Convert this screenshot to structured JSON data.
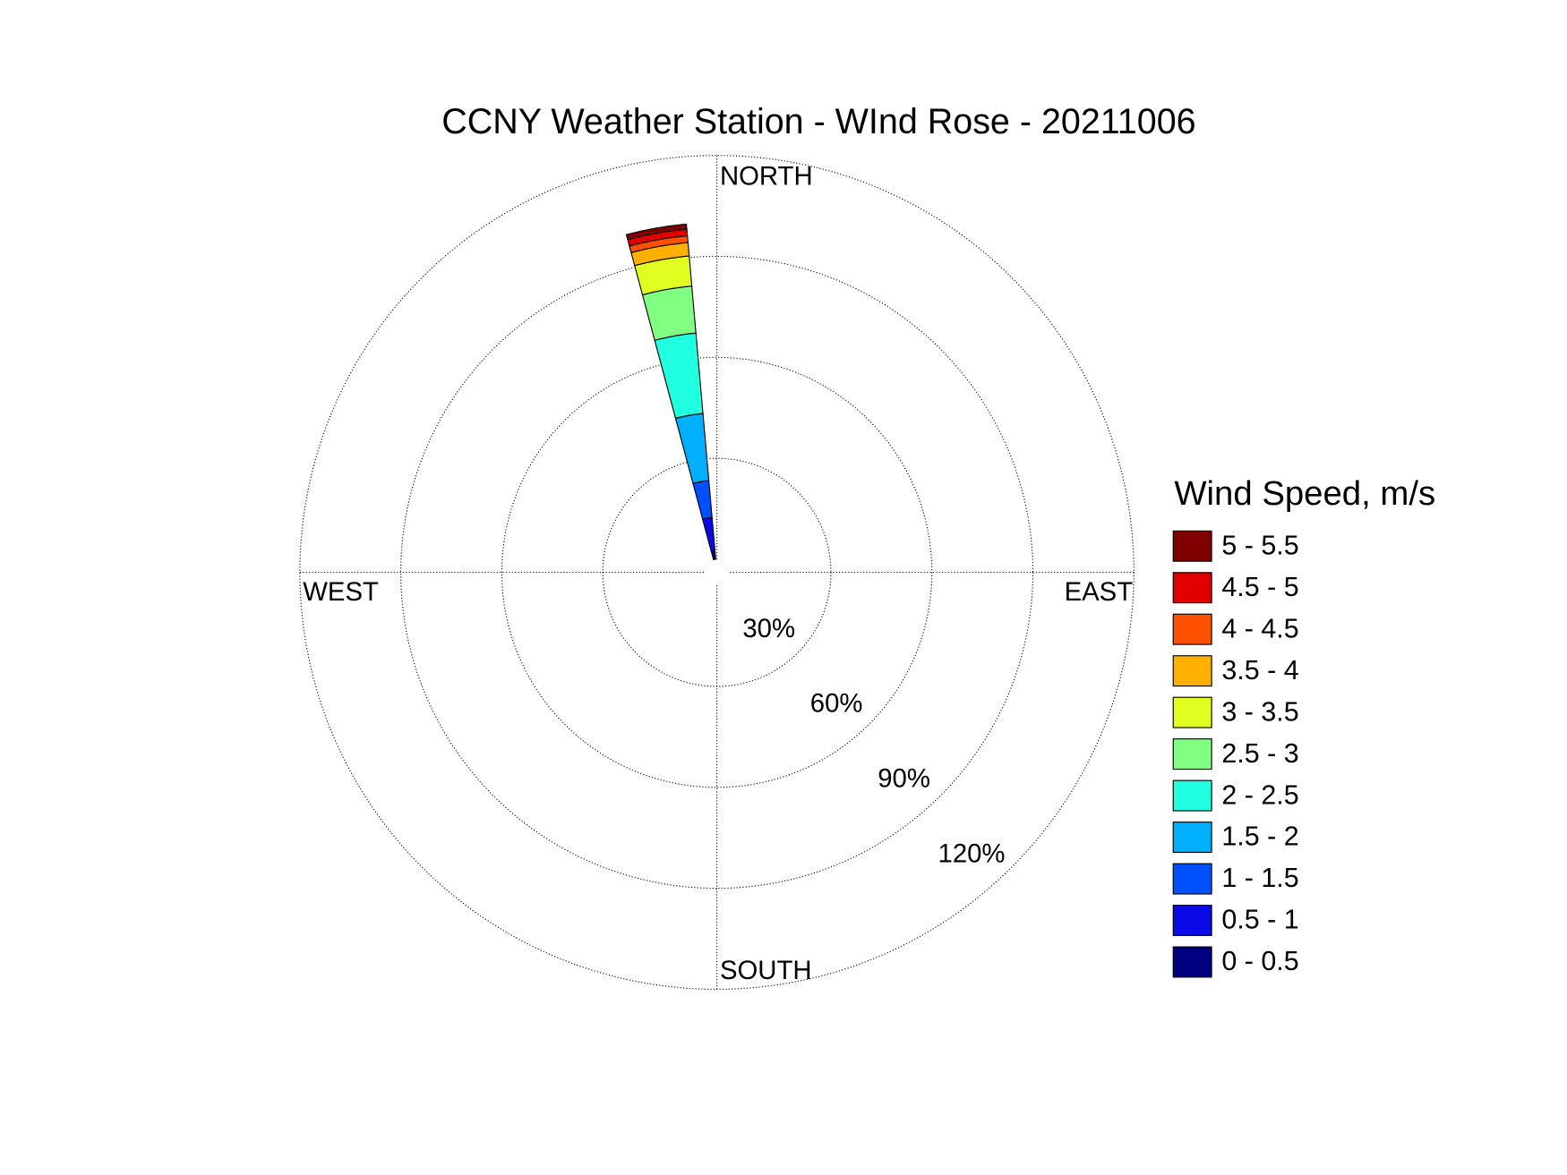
{
  "chart_data": {
    "type": "wind_rose",
    "title": "CCNY Weather Station - WInd Rose - 20211006",
    "legend_title": "Wind Speed, m/s",
    "directions": [
      350
    ],
    "sector_width": 10,
    "compass": {
      "north": "NORTH",
      "east": "EAST",
      "south": "SOUTH",
      "west": "WEST"
    },
    "rlim": [
      0,
      120
    ],
    "rticks": [
      {
        "value": 30,
        "label": "30%"
      },
      {
        "value": 60,
        "label": "60%"
      },
      {
        "value": 90,
        "label": "90%"
      },
      {
        "value": 120,
        "label": "120%"
      }
    ],
    "legend": "right",
    "series": [
      {
        "name": "0 - 0.5",
        "color": "#000080",
        "values": [
          2.5
        ]
      },
      {
        "name": "0.5 - 1",
        "color": "#0a0ae6",
        "values": [
          10
        ]
      },
      {
        "name": "1 - 1.5",
        "color": "#0050ff",
        "values": [
          11
        ]
      },
      {
        "name": "1.5 - 2",
        "color": "#00b0ff",
        "values": [
          20
        ]
      },
      {
        "name": "2 - 2.5",
        "color": "#20ffe0",
        "values": [
          24
        ]
      },
      {
        "name": "2.5 - 3",
        "color": "#80ff80",
        "values": [
          14
        ]
      },
      {
        "name": "3 - 3.5",
        "color": "#e0ff20",
        "values": [
          9
        ]
      },
      {
        "name": "3.5 - 4",
        "color": "#ffb000",
        "values": [
          4
        ]
      },
      {
        "name": "4 - 4.5",
        "color": "#ff5000",
        "values": [
          2
        ]
      },
      {
        "name": "4.5 - 5",
        "color": "#e00000",
        "values": [
          2
        ]
      },
      {
        "name": "5 - 5.5",
        "color": "#800000",
        "values": [
          1.5
        ]
      }
    ]
  }
}
